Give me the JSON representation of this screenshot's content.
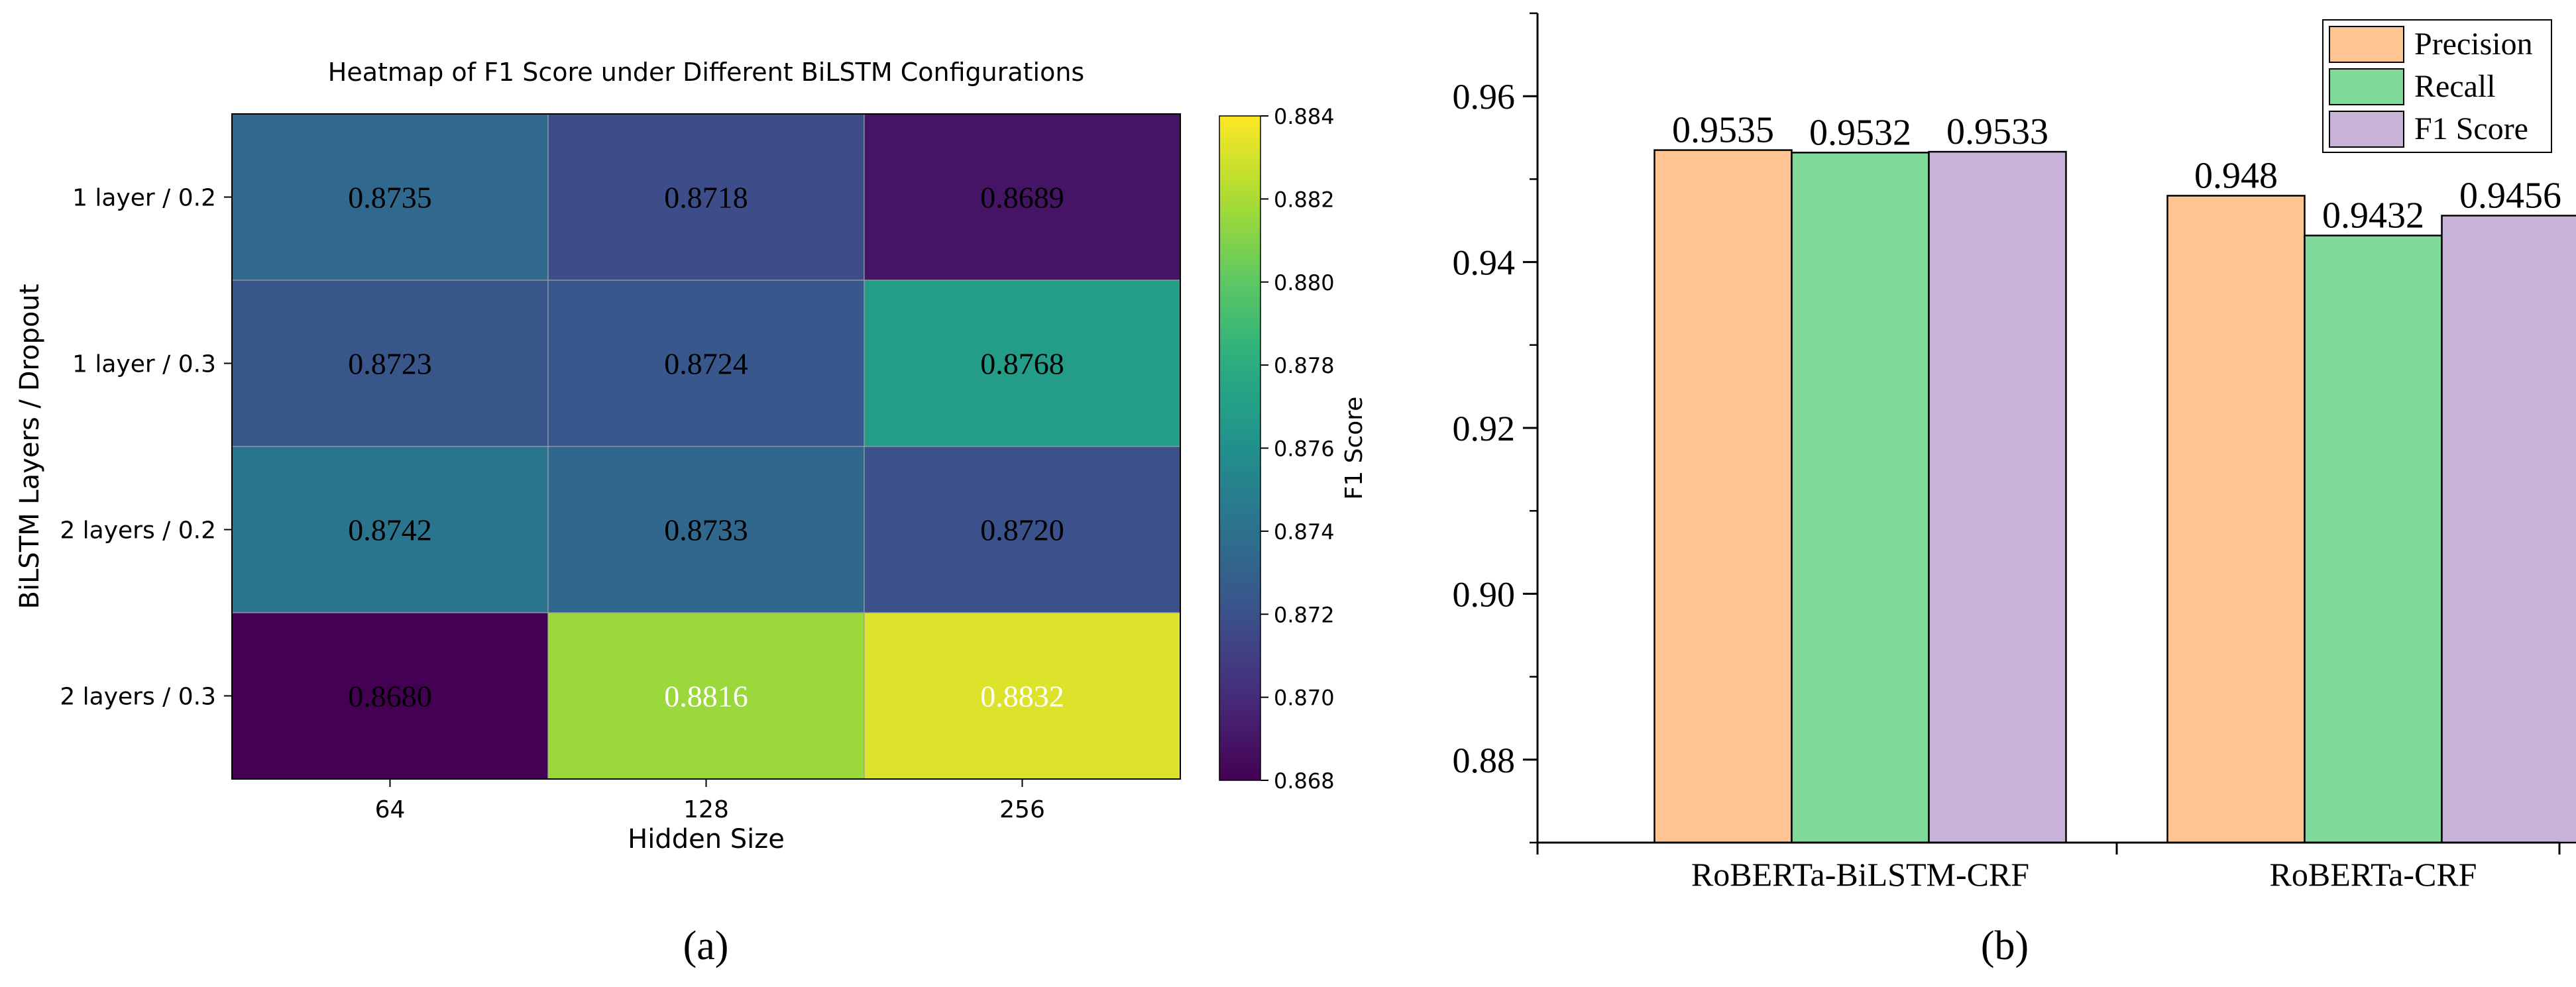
{
  "chart_data": [
    {
      "type": "heatmap",
      "title": "Heatmap of F1 Score under Different BiLSTM Configurations",
      "xlabel": "Hidden Size",
      "ylabel": "BiLSTM Layers / Dropout",
      "x_categories": [
        "64",
        "128",
        "256"
      ],
      "y_categories": [
        "1 layer / 0.2",
        "1 layer / 0.3",
        "2 layers / 0.2",
        "2 layers / 0.3"
      ],
      "values": [
        [
          0.8735,
          0.8718,
          0.8689
        ],
        [
          0.8723,
          0.8724,
          0.8768
        ],
        [
          0.8742,
          0.8733,
          0.872
        ],
        [
          0.868,
          0.8816,
          0.8832
        ]
      ],
      "cell_labels": [
        [
          "0.8735",
          "0.8718",
          "0.8689"
        ],
        [
          "0.8723",
          "0.8724",
          "0.8768"
        ],
        [
          "0.8742",
          "0.8733",
          "0.8720"
        ],
        [
          "0.8680",
          "0.8816",
          "0.8832"
        ]
      ],
      "colorbar": {
        "label": "F1 Score",
        "range": [
          0.868,
          0.884
        ],
        "ticks": [
          "0.868",
          "0.870",
          "0.872",
          "0.874",
          "0.876",
          "0.878",
          "0.880",
          "0.882",
          "0.884"
        ],
        "colormap": "viridis"
      },
      "caption": "(a)"
    },
    {
      "type": "bar",
      "categories": [
        "RoBERTa-BiLSTM-CRF",
        "RoBERTa-CRF"
      ],
      "series": [
        {
          "name": "Precision",
          "values": [
            0.9535,
            0.948
          ],
          "labels": [
            "0.9535",
            "0.948"
          ],
          "color": "#fec593"
        },
        {
          "name": "Recall",
          "values": [
            0.9532,
            0.9432
          ],
          "labels": [
            "0.9532",
            "0.9432"
          ],
          "color": "#80d899"
        },
        {
          "name": "F1 Score",
          "values": [
            0.9533,
            0.9456
          ],
          "labels": [
            "0.9533",
            "0.9456"
          ],
          "color": "#c8b2d8"
        }
      ],
      "ylim": [
        0.87,
        0.97
      ],
      "yticks": [
        "0.88",
        "0.90",
        "0.92",
        "0.94",
        "0.96"
      ],
      "legend": "top-right",
      "caption": "(b)"
    }
  ]
}
